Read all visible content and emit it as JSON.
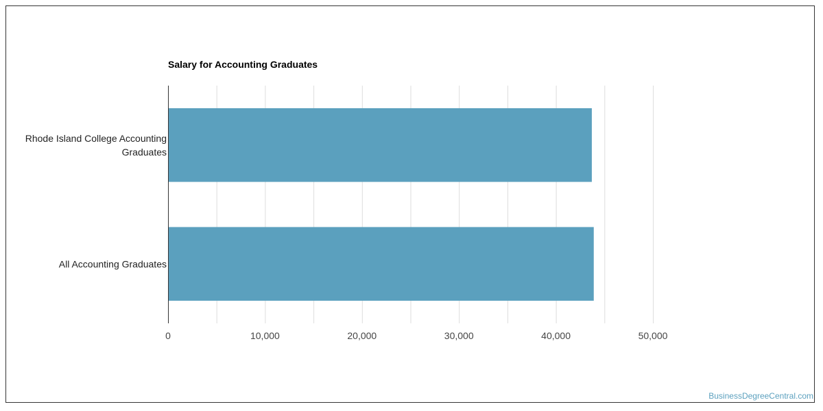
{
  "chart_data": {
    "type": "bar",
    "orientation": "horizontal",
    "title": "Salary for Accounting Graduates",
    "categories": [
      "Rhode Island College Accounting Graduates",
      "All Accounting Graduates"
    ],
    "category_lines": [
      [
        "Rhode Island College Accounting",
        "Graduates"
      ],
      [
        "All Accounting Graduates"
      ]
    ],
    "values": [
      43700,
      43900
    ],
    "xlim": [
      0,
      50000
    ],
    "xticks": [
      0,
      10000,
      20000,
      30000,
      40000,
      50000
    ],
    "xtick_labels": [
      "0",
      "10,000",
      "20,000",
      "30,000",
      "40,000",
      "50,000"
    ],
    "grid": true,
    "bar_color": "#5ba0be",
    "xlabel": "",
    "ylabel": ""
  },
  "watermark": "BusinessDegreeCentral.com"
}
